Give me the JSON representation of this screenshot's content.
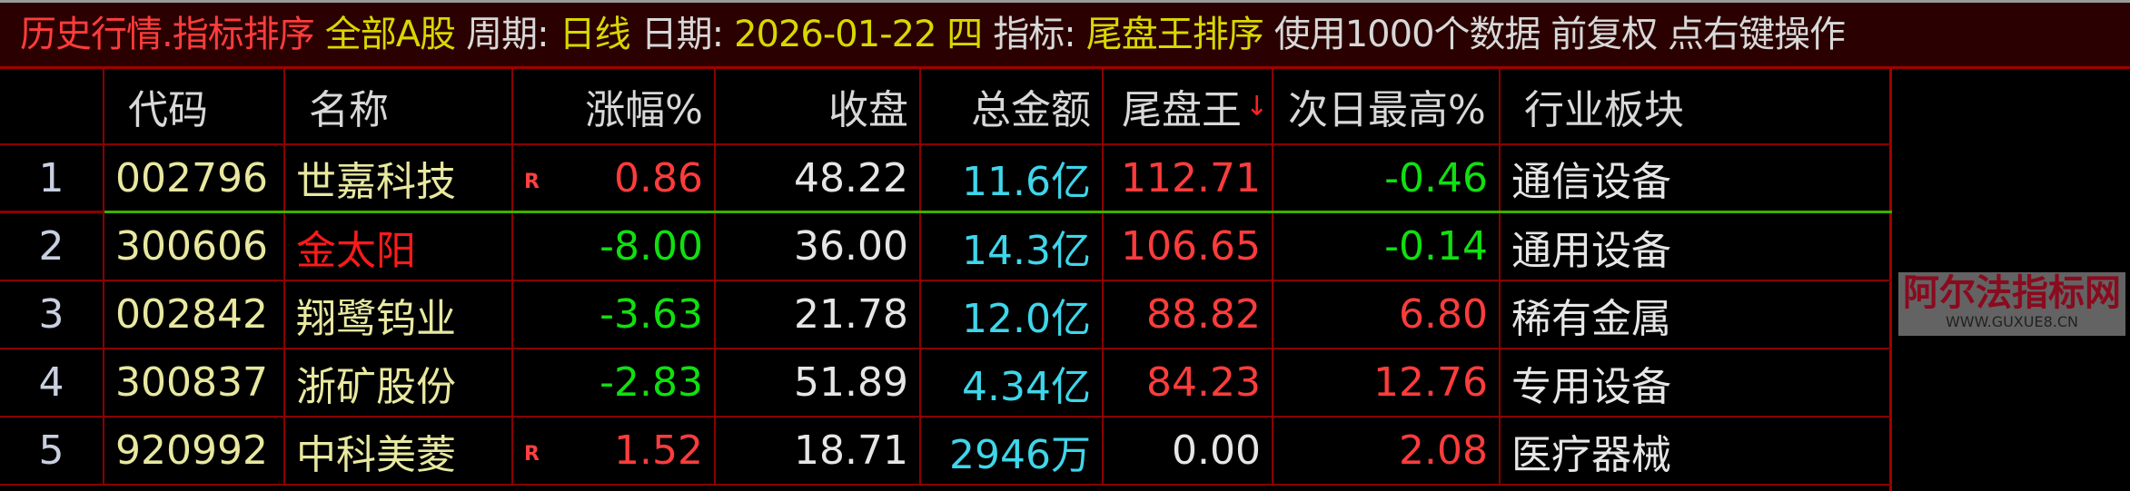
{
  "titlebar": {
    "title": "历史行情.指标排序",
    "market": "全部A股",
    "period_label": "周期:",
    "period_value": "日线",
    "date_label": "日期:",
    "date_value": "2026-01-22 四",
    "indicator_label": "指标:",
    "indicator_value": "尾盘王排序",
    "info": "使用1000个数据 前复权 点右键操作"
  },
  "colors": {
    "up": "#ff3c3c",
    "down": "#10e010",
    "amount": "#3ed6ea",
    "selection_line": "#3cb000",
    "grid": "#8a0000",
    "title_bg": "#2a0000"
  },
  "columns": [
    "",
    "代码",
    "名称",
    "涨幅%",
    "收盘",
    "总金额",
    "尾盘王",
    "次日最高%",
    "行业板块"
  ],
  "sort_icon": "arrow-down-icon",
  "rows": [
    {
      "no": "1",
      "code": "002796",
      "name": "世嘉科技",
      "r": "R",
      "change": "0.86",
      "close": "48.22",
      "amount": "11.6亿",
      "wpw": "112.71",
      "next_high": "-0.46",
      "industry": "通信设备"
    },
    {
      "no": "2",
      "code": "300606",
      "name": "金太阳",
      "r": "",
      "change": "-8.00",
      "close": "36.00",
      "amount": "14.3亿",
      "wpw": "106.65",
      "next_high": "-0.14",
      "industry": "通用设备"
    },
    {
      "no": "3",
      "code": "002842",
      "name": "翔鹭钨业",
      "r": "",
      "change": "-3.63",
      "close": "21.78",
      "amount": "12.0亿",
      "wpw": "88.82",
      "next_high": "6.80",
      "industry": "稀有金属"
    },
    {
      "no": "4",
      "code": "300837",
      "name": "浙矿股份",
      "r": "",
      "change": "-2.83",
      "close": "51.89",
      "amount": "4.34亿",
      "wpw": "84.23",
      "next_high": "12.76",
      "industry": "专用设备"
    },
    {
      "no": "5",
      "code": "920992",
      "name": "中科美菱",
      "r": "R",
      "change": "1.52",
      "close": "18.71",
      "amount": "2946万",
      "wpw": "0.00",
      "next_high": "2.08",
      "industry": "医疗器械"
    }
  ],
  "watermark": {
    "text": "阿尔法指标网",
    "url": "WWW.GUXUE8.CN"
  }
}
